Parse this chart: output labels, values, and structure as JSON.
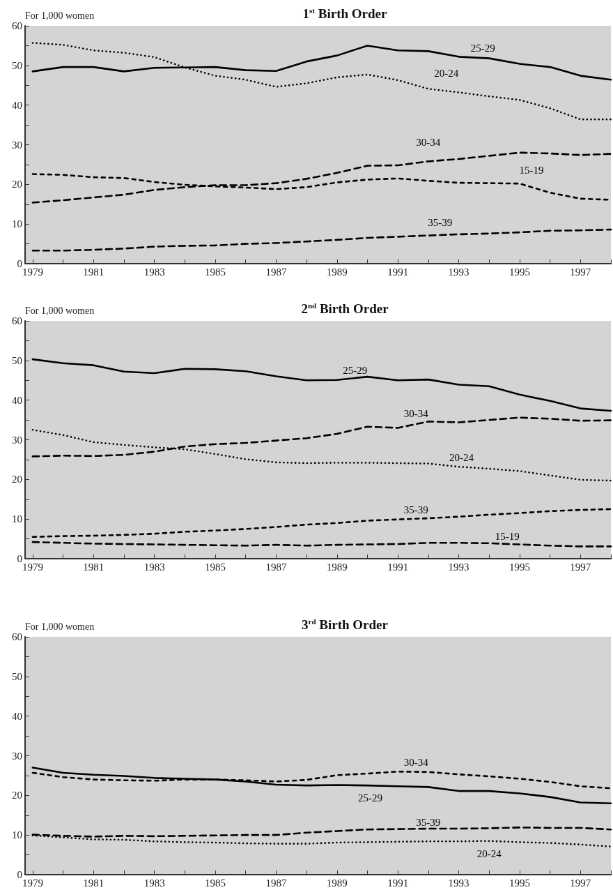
{
  "chart_data": [
    {
      "type": "line",
      "title": "1$^{st}$ Birth Order",
      "ylabel": "For 1,000 women",
      "marker": "none",
      "x": [
        1979,
        1980,
        1981,
        1982,
        1983,
        1984,
        1985,
        1986,
        1987,
        1988,
        1989,
        1990,
        1991,
        1992,
        1993,
        1994,
        1995,
        1996,
        1997,
        1998
      ],
      "xlim": [
        1978.75,
        1998
      ],
      "ylim": [
        0,
        60
      ],
      "xticks": [
        1979,
        {
          "value": 1980,
          "label": null
        },
        1981,
        {
          "value": 1982,
          "label": null
        },
        1983,
        {
          "value": 1984,
          "label": null
        },
        1985,
        {
          "value": 1986,
          "label": null
        },
        1987,
        {
          "value": 1988,
          "label": null
        },
        1989,
        {
          "value": 1990,
          "label": null
        },
        1991,
        {
          "value": 1992,
          "label": null
        },
        1993,
        {
          "value": 1994,
          "label": null
        },
        1995,
        {
          "value": 1996,
          "label": null
        },
        1997,
        {
          "value": 1998,
          "label": null
        }
      ],
      "yticks": [
        0,
        {
          "value": 5,
          "label": null
        },
        10,
        {
          "value": 15,
          "label": null
        },
        20,
        {
          "value": 25,
          "label": null
        },
        30,
        {
          "value": 35,
          "label": null
        },
        40,
        {
          "value": 45,
          "label": null
        },
        50,
        {
          "value": 55,
          "label": null
        },
        60
      ],
      "series": [
        {
          "name": "25-29",
          "color": "#000000",
          "line_style": "solid",
          "values": [
            48.5,
            49.6,
            49.6,
            48.5,
            49.4,
            49.5,
            49.6,
            48.8,
            48.6,
            51,
            52.5,
            55,
            53.8,
            53.6,
            52.2,
            51.8,
            50.4,
            49.6,
            47.4,
            46.4
          ]
        },
        {
          "name": "20-24",
          "color": "#000000",
          "line_style": "dotted",
          "values": [
            55.7,
            55.2,
            53.8,
            53.2,
            52.1,
            49.5,
            47.4,
            46.4,
            44.6,
            45.5,
            47,
            47.7,
            46.3,
            44.1,
            43.2,
            42.2,
            41.3,
            39.2,
            36.4,
            36.4
          ]
        },
        {
          "name": "30-34",
          "color": "#000000",
          "line_style": "dashed",
          "values": [
            15.4,
            16,
            16.7,
            17.4,
            18.6,
            19.3,
            19.8,
            19.8,
            20.3,
            21.4,
            22.9,
            24.7,
            24.8,
            25.8,
            26.4,
            27.2,
            28,
            27.8,
            27.4,
            27.7
          ]
        },
        {
          "name": "15-19",
          "color": "#000000",
          "line_style": "dashed",
          "values": [
            22.6,
            22.4,
            21.8,
            21.6,
            20.6,
            19.9,
            19.5,
            19.2,
            18.8,
            19.3,
            20.5,
            21.2,
            21.5,
            20.9,
            20.4,
            20.3,
            20.2,
            17.9,
            16.4,
            16.1
          ]
        },
        {
          "name": "35-39",
          "color": "#000000",
          "line_style": "dashed",
          "values": [
            3.3,
            3.3,
            3.5,
            3.8,
            4.3,
            4.5,
            4.6,
            5.0,
            5.2,
            5.6,
            6.0,
            6.5,
            6.8,
            7.1,
            7.4,
            7.6,
            7.9,
            8.3,
            8.4,
            8.6
          ]
        }
      ]
    },
    {
      "type": "line",
      "title": "2$^{nd}$ Birth Order",
      "ylabel": "For 1,000 women",
      "marker": "none",
      "x": [
        1979,
        1980,
        1981,
        1982,
        1983,
        1984,
        1985,
        1986,
        1987,
        1988,
        1989,
        1990,
        1991,
        1992,
        1993,
        1994,
        1995,
        1996,
        1997,
        1998
      ],
      "xlim": [
        1978.75,
        1998
      ],
      "ylim": [
        0,
        60
      ],
      "xticks": [
        1979,
        {
          "value": 1980,
          "label": null
        },
        1981,
        {
          "value": 1982,
          "label": null
        },
        1983,
        {
          "value": 1984,
          "label": null
        },
        1985,
        {
          "value": 1986,
          "label": null
        },
        1987,
        {
          "value": 1988,
          "label": null
        },
        1989,
        {
          "value": 1990,
          "label": null
        },
        1991,
        {
          "value": 1992,
          "label": null
        },
        1993,
        {
          "value": 1994,
          "label": null
        },
        1995,
        {
          "value": 1996,
          "label": null
        },
        1997,
        {
          "value": 1998,
          "label": null
        }
      ],
      "yticks": [
        0,
        {
          "value": 5,
          "label": null
        },
        10,
        {
          "value": 15,
          "label": null
        },
        20,
        {
          "value": 25,
          "label": null
        },
        30,
        {
          "value": 35,
          "label": null
        },
        40,
        {
          "value": 45,
          "label": null
        },
        50,
        {
          "value": 55,
          "label": null
        },
        60
      ],
      "series": [
        {
          "name": "25-29",
          "color": "#000000",
          "line_style": "solid",
          "values": [
            50.3,
            49.3,
            48.8,
            47.2,
            46.8,
            47.9,
            47.8,
            47.3,
            46.0,
            45.0,
            45.1,
            45.9,
            45.0,
            45.2,
            43.9,
            43.5,
            41.4,
            39.8,
            37.9,
            37.3
          ]
        },
        {
          "name": "20-24",
          "color": "#000000",
          "line_style": "dotted",
          "values": [
            32.5,
            31.2,
            29.4,
            28.7,
            28.1,
            27.6,
            26.4,
            25.1,
            24.3,
            24.1,
            24.2,
            24.2,
            24.1,
            24.0,
            23.2,
            22.7,
            22.1,
            21.0,
            19.9,
            19.7
          ]
        },
        {
          "name": "30-34",
          "color": "#000000",
          "line_style": "dashed",
          "values": [
            25.8,
            26.0,
            25.9,
            26.2,
            27.0,
            28.3,
            28.9,
            29.2,
            29.8,
            30.4,
            31.5,
            33.3,
            33.0,
            34.6,
            34.4,
            35.0,
            35.6,
            35.3,
            34.8,
            34.9
          ]
        },
        {
          "name": "35-39",
          "color": "#000000",
          "line_style": "dashed",
          "values": [
            5.5,
            5.7,
            5.8,
            6.0,
            6.3,
            6.8,
            7.1,
            7.5,
            8.0,
            8.6,
            9.0,
            9.6,
            9.9,
            10.2,
            10.6,
            11.1,
            11.5,
            12.0,
            12.3,
            12.5
          ]
        },
        {
          "name": "15-19",
          "color": "#000000",
          "line_style": "dashed",
          "values": [
            4.2,
            4.0,
            3.8,
            3.7,
            3.6,
            3.5,
            3.4,
            3.3,
            3.5,
            3.3,
            3.5,
            3.6,
            3.7,
            4.0,
            4.0,
            3.9,
            3.6,
            3.3,
            3.1,
            3.1
          ]
        }
      ]
    },
    {
      "type": "line",
      "title": "3$^{rd}$ Birth Order",
      "ylabel": "For 1,000 women",
      "marker": "none",
      "x": [
        1979,
        1980,
        1981,
        1982,
        1983,
        1984,
        1985,
        1986,
        1987,
        1988,
        1989,
        1990,
        1991,
        1992,
        1993,
        1994,
        1995,
        1996,
        1997,
        1998
      ],
      "xlim": [
        1978.75,
        1998
      ],
      "ylim": [
        0,
        60
      ],
      "xticks": [
        1979,
        {
          "value": 1980,
          "label": null
        },
        1981,
        {
          "value": 1982,
          "label": null
        },
        1983,
        {
          "value": 1984,
          "label": null
        },
        1985,
        {
          "value": 1986,
          "label": null
        },
        1987,
        {
          "value": 1988,
          "label": null
        },
        1989,
        {
          "value": 1990,
          "label": null
        },
        1991,
        {
          "value": 1992,
          "label": null
        },
        1993,
        {
          "value": 1994,
          "label": null
        },
        1995,
        {
          "value": 1996,
          "label": null
        },
        1997,
        {
          "value": 1998,
          "label": null
        }
      ],
      "yticks": [
        0,
        {
          "value": 5,
          "label": null
        },
        10,
        {
          "value": 15,
          "label": null
        },
        20,
        {
          "value": 25,
          "label": null
        },
        30,
        {
          "value": 35,
          "label": null
        },
        40,
        {
          "value": 45,
          "label": null
        },
        50,
        {
          "value": 55,
          "label": null
        },
        60
      ],
      "series": [
        {
          "name": "25-29",
          "color": "#000000",
          "line_style": "solid",
          "values": [
            27.0,
            25.7,
            25.2,
            24.9,
            24.4,
            24.2,
            24.0,
            23.5,
            22.7,
            22.5,
            22.6,
            22.5,
            22.3,
            22.1,
            21.1,
            21.1,
            20.5,
            19.6,
            18.2,
            18.0
          ]
        },
        {
          "name": "30-34",
          "color": "#000000",
          "line_style": "dashed",
          "values": [
            25.7,
            24.6,
            24.0,
            23.8,
            23.7,
            24.0,
            24.0,
            23.8,
            23.5,
            23.9,
            25.1,
            25.5,
            26.0,
            25.9,
            25.3,
            24.8,
            24.2,
            23.4,
            22.3,
            21.8
          ]
        },
        {
          "name": "35-39",
          "color": "#000000",
          "line_style": "dashed",
          "values": [
            10.1,
            9.8,
            9.6,
            9.8,
            9.7,
            9.8,
            9.9,
            10.0,
            10.0,
            10.6,
            11.0,
            11.4,
            11.5,
            11.6,
            11.6,
            11.7,
            11.9,
            11.8,
            11.8,
            11.4
          ]
        },
        {
          "name": "20-24",
          "color": "#000000",
          "line_style": "dotted",
          "values": [
            9.9,
            9.4,
            8.9,
            8.8,
            8.4,
            8.2,
            8.1,
            7.9,
            7.8,
            7.8,
            8.1,
            8.2,
            8.3,
            8.4,
            8.4,
            8.5,
            8.2,
            8.0,
            7.6,
            7.1
          ]
        }
      ]
    }
  ]
}
